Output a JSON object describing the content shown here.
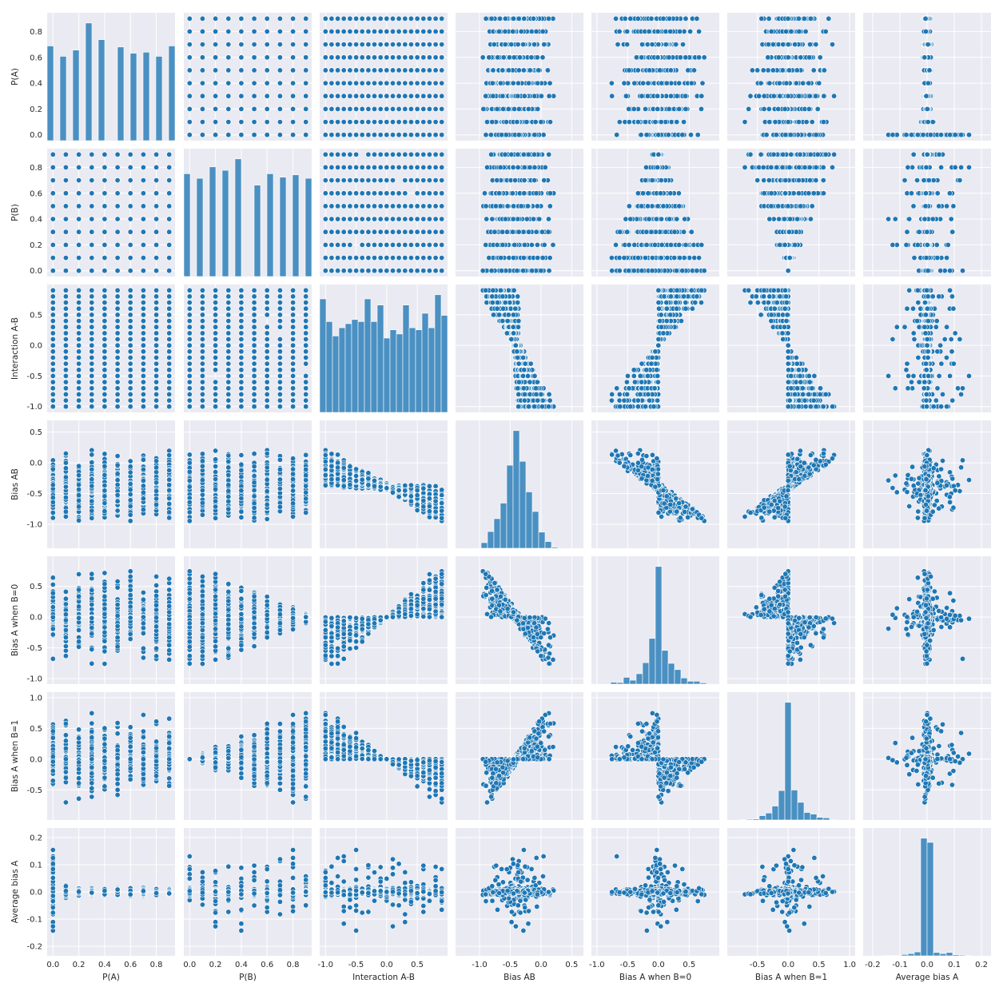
{
  "chart_data": {
    "type": "pairplot",
    "variables": [
      "P(A)",
      "P(B)",
      "Interaction A-B",
      "Bias AB",
      "Bias A when B=0",
      "Bias A when B=1",
      "Average bias A"
    ],
    "diagonal": "histogram",
    "off_diagonal": "scatter",
    "grid": true,
    "colors": {
      "point": "#1f77b4",
      "bar": "#4a90c2",
      "panel_background": "#eaeaf2",
      "grid": "#ffffff"
    },
    "axes": [
      {
        "name": "P(A)",
        "lim": [
          -0.045,
          0.945
        ],
        "ticks": [
          0.0,
          0.2,
          0.4,
          0.6,
          0.8
        ],
        "tick_labels": [
          "0.0",
          "0.2",
          "0.4",
          "0.6",
          "0.8"
        ]
      },
      {
        "name": "P(B)",
        "lim": [
          -0.045,
          0.945
        ],
        "ticks": [
          0.0,
          0.2,
          0.4,
          0.6,
          0.8
        ],
        "tick_labels": [
          "0.0",
          "0.2",
          "0.4",
          "0.6",
          "0.8"
        ]
      },
      {
        "name": "Interaction A-B",
        "lim": [
          -1.095,
          0.995
        ],
        "ticks": [
          -1.0,
          -0.5,
          0.0,
          0.5
        ],
        "tick_labels": [
          "-1.0",
          "-0.5",
          "0.0",
          "0.5"
        ]
      },
      {
        "name": "Bias AB",
        "lim": [
          -1.39,
          0.69
        ],
        "ticks": [
          -1.0,
          -0.5,
          0.0,
          0.5
        ],
        "tick_labels": [
          "-1.0",
          "-0.5",
          "0.0",
          "0.5"
        ]
      },
      {
        "name": "Bias A when B=0",
        "lim": [
          -1.09,
          0.99
        ],
        "ticks": [
          -1.0,
          -0.5,
          0.0,
          0.5
        ],
        "tick_labels": [
          "-1.0",
          "-0.5",
          "0.0",
          "0.5"
        ]
      },
      {
        "name": "Bias A when B=1",
        "lim": [
          -0.99,
          1.09
        ],
        "ticks": [
          -0.5,
          0.0,
          0.5,
          1.0
        ],
        "tick_labels": [
          "-0.5",
          "0.0",
          "0.5",
          "1.0"
        ]
      },
      {
        "name": "Average bias A",
        "lim": [
          -0.235,
          0.235
        ],
        "ticks": [
          -0.2,
          -0.1,
          0.0,
          0.1,
          0.2
        ],
        "tick_labels": [
          "-0.2",
          "-0.1",
          "0.0",
          "0.1",
          "0.2"
        ]
      }
    ],
    "values": {
      "P(A)": [
        0.0,
        0.1,
        0.2,
        0.3,
        0.4,
        0.5,
        0.6,
        0.7,
        0.8,
        0.9
      ],
      "P(B)": [
        0.0,
        0.1,
        0.2,
        0.3,
        0.4,
        0.5,
        0.6,
        0.7,
        0.8,
        0.9
      ],
      "Interaction A-B": [
        -1.0,
        -0.9,
        -0.8,
        -0.7,
        -0.6,
        -0.5,
        -0.4,
        -0.3,
        -0.2,
        -0.1,
        0.0,
        0.1,
        0.2,
        0.3,
        0.4,
        0.5,
        0.6,
        0.7,
        0.8,
        0.9
      ]
    }
  }
}
